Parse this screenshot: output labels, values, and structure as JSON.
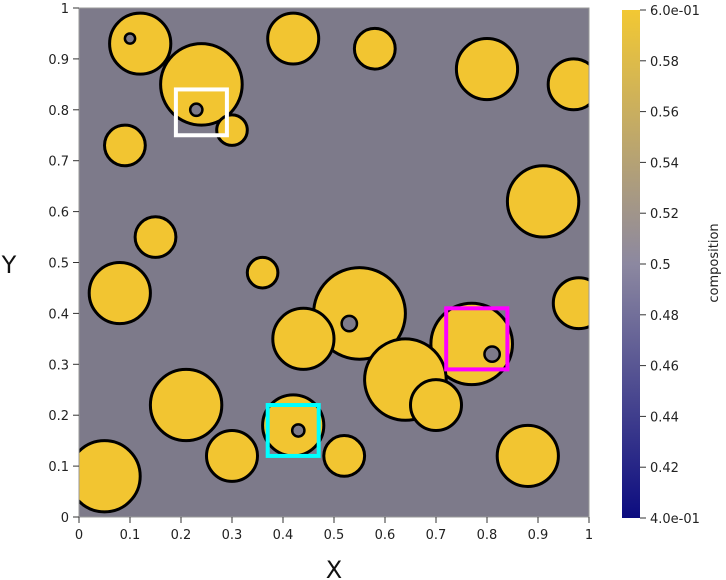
{
  "chart_data": {
    "type": "heatmap",
    "title": "",
    "xlabel": "X",
    "ylabel": "Y",
    "xlim": [
      0,
      1
    ],
    "ylim": [
      0,
      1
    ],
    "x_ticks": [
      0,
      0.1,
      0.2,
      0.3,
      0.4,
      0.5,
      0.6,
      0.7,
      0.8,
      0.9,
      1
    ],
    "x_tick_labels": [
      "0",
      "0.1",
      "0.2",
      "0.3",
      "0.4",
      "0.5",
      "0.6",
      "0.7",
      "0.8",
      "0.9",
      "1"
    ],
    "y_ticks": [
      0,
      0.1,
      0.2,
      0.3,
      0.4,
      0.5,
      0.6,
      0.7,
      0.8,
      0.9,
      1
    ],
    "y_tick_labels": [
      "0",
      "0.1",
      "0.2",
      "0.3",
      "0.4",
      "0.5",
      "0.6",
      "0.7",
      "0.8",
      "0.9",
      "1"
    ],
    "colorbar": {
      "title": "composition",
      "range": [
        0.4,
        0.6
      ],
      "ticks": [
        0.6,
        0.58,
        0.56,
        0.54,
        0.52,
        0.5,
        0.48,
        0.46,
        0.44,
        0.42,
        0.4
      ],
      "tick_labels": [
        "6.0e-01",
        "0.58",
        "0.56",
        "0.54",
        "0.52",
        "0.5",
        "0.48",
        "0.46",
        "0.44",
        "0.42",
        "4.0e-01"
      ],
      "colors": [
        "#f2c833",
        "#8c88a0",
        "#0c0c80"
      ]
    },
    "field": {
      "matrix_value": 0.48,
      "precipitate_value": 0.6,
      "matrix_color": "#7d7a8a",
      "precipitate_color": "#f2c531",
      "boundary_color": "#000000",
      "precipitates": [
        {
          "cx": 0.12,
          "cy": 0.93,
          "r": 0.06
        },
        {
          "cx": 0.24,
          "cy": 0.85,
          "r": 0.08
        },
        {
          "cx": 0.42,
          "cy": 0.94,
          "r": 0.05
        },
        {
          "cx": 0.09,
          "cy": 0.73,
          "r": 0.04
        },
        {
          "cx": 0.3,
          "cy": 0.76,
          "r": 0.03
        },
        {
          "cx": 0.58,
          "cy": 0.92,
          "r": 0.04
        },
        {
          "cx": 0.8,
          "cy": 0.88,
          "r": 0.06
        },
        {
          "cx": 0.91,
          "cy": 0.62,
          "r": 0.07
        },
        {
          "cx": 0.98,
          "cy": 0.42,
          "r": 0.05
        },
        {
          "cx": 0.55,
          "cy": 0.4,
          "r": 0.09
        },
        {
          "cx": 0.44,
          "cy": 0.35,
          "r": 0.06
        },
        {
          "cx": 0.77,
          "cy": 0.34,
          "r": 0.08
        },
        {
          "cx": 0.64,
          "cy": 0.27,
          "r": 0.08
        },
        {
          "cx": 0.7,
          "cy": 0.22,
          "r": 0.05
        },
        {
          "cx": 0.21,
          "cy": 0.22,
          "r": 0.07
        },
        {
          "cx": 0.08,
          "cy": 0.44,
          "r": 0.06
        },
        {
          "cx": 0.42,
          "cy": 0.18,
          "r": 0.06
        },
        {
          "cx": 0.3,
          "cy": 0.12,
          "r": 0.05
        },
        {
          "cx": 0.05,
          "cy": 0.08,
          "r": 0.07
        },
        {
          "cx": 0.52,
          "cy": 0.12,
          "r": 0.04
        },
        {
          "cx": 0.88,
          "cy": 0.12,
          "r": 0.06
        },
        {
          "cx": 0.15,
          "cy": 0.55,
          "r": 0.04
        },
        {
          "cx": 0.36,
          "cy": 0.48,
          "r": 0.03
        },
        {
          "cx": 0.97,
          "cy": 0.85,
          "r": 0.05
        }
      ],
      "holes": [
        {
          "cx": 0.23,
          "cy": 0.8,
          "r": 0.012
        },
        {
          "cx": 0.43,
          "cy": 0.17,
          "r": 0.012
        },
        {
          "cx": 0.81,
          "cy": 0.32,
          "r": 0.015
        },
        {
          "cx": 0.53,
          "cy": 0.38,
          "r": 0.015
        },
        {
          "cx": 0.1,
          "cy": 0.94,
          "r": 0.01
        }
      ]
    },
    "highlight_boxes": [
      {
        "color": "#ffffff",
        "x0": 0.19,
        "x1": 0.29,
        "y0": 0.75,
        "y1": 0.84
      },
      {
        "color": "#ff00ff",
        "x0": 0.72,
        "x1": 0.84,
        "y0": 0.29,
        "y1": 0.41
      },
      {
        "color": "#00ffff",
        "x0": 0.37,
        "x1": 0.47,
        "y0": 0.12,
        "y1": 0.22
      }
    ]
  }
}
